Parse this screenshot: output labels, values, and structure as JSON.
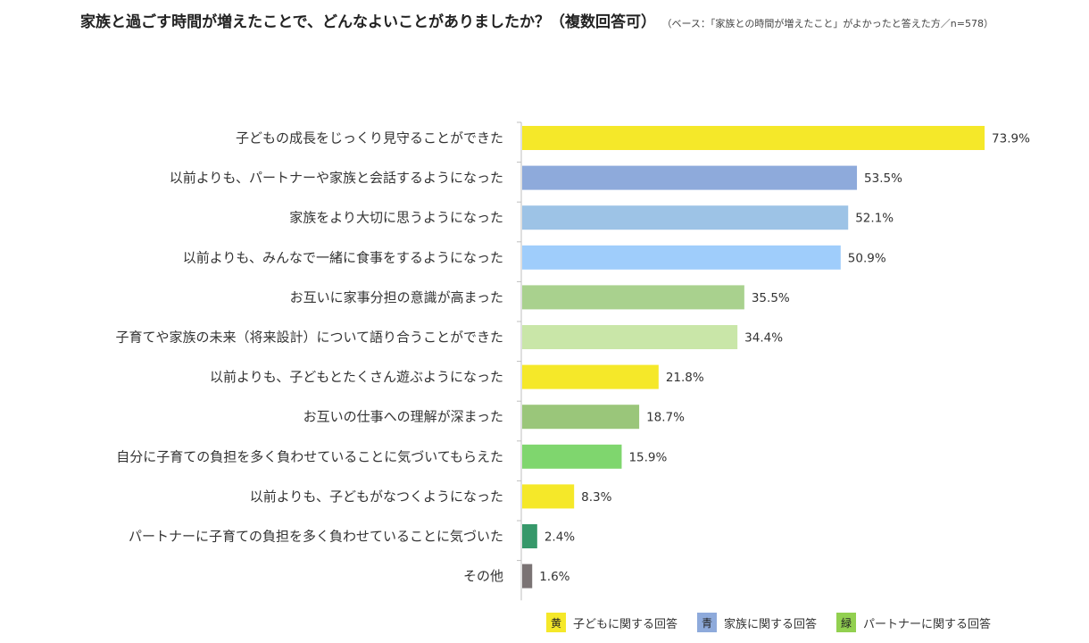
{
  "header": {
    "title": "家族と過ごす時間が増えたことで、どんなよいことがありましたか？（複数回答可）",
    "subtitle": "（ベース：「家族との時間が増えたこと」がよかったと答えた方／n=578）"
  },
  "chart_data": {
    "type": "bar",
    "orientation": "horizontal",
    "categories": [
      "子どもの成長をじっくり見守ることができた",
      "以前よりも、パートナーや家族と会話するようになった",
      "家族をより大切に思うようになった",
      "以前よりも、みんなで一緒に食事をするようになった",
      "お互いに家事分担の意識が高まった",
      "子育てや家族の未来（将来設計）について語り合うことができた",
      "以前よりも、子どもとたくさん遊ぶようになった",
      "お互いの仕事への理解が深まった",
      "自分に子育ての負担を多く負わせていることに気づいてもらえた",
      "以前よりも、子どもがなつくようになった",
      "パートナーに子育ての負担を多く負わせていることに気づいた",
      "その他"
    ],
    "values": [
      73.9,
      53.5,
      52.1,
      50.9,
      35.5,
      34.4,
      21.8,
      18.7,
      15.9,
      8.3,
      2.4,
      1.6
    ],
    "value_labels": [
      "73.9%",
      "53.5%",
      "52.1%",
      "50.9%",
      "35.5%",
      "34.4%",
      "21.8%",
      "18.7%",
      "15.9%",
      "8.3%",
      "2.4%",
      "1.6%"
    ],
    "bar_colors": [
      "#f5e829",
      "#8eaadb",
      "#9dc3e6",
      "#9fcdfb",
      "#a9d18e",
      "#c9e6a8",
      "#f5e829",
      "#9ac67a",
      "#7fd66e",
      "#f5e829",
      "#36986a",
      "#7a7374"
    ],
    "xlim": [
      0,
      100
    ],
    "legend": [
      {
        "swatch_label": "黄",
        "label": "子どもに関する回答",
        "color": "#f5e829"
      },
      {
        "swatch_label": "青",
        "label": "家族に関する回答",
        "color": "#8eaadb"
      },
      {
        "swatch_label": "緑",
        "label": "パートナーに関する回答",
        "color": "#92d050"
      }
    ],
    "legend_position": "bottom-right"
  }
}
